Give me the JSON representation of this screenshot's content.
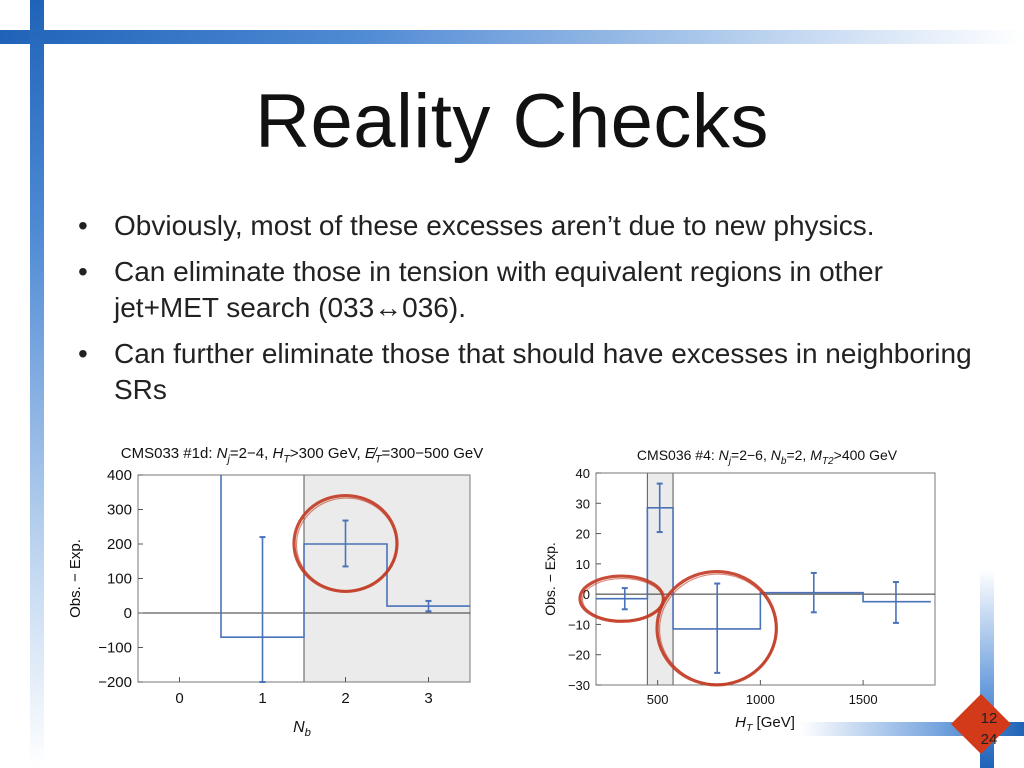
{
  "slide": {
    "title": "Reality Checks",
    "bullets": [
      "Obviously, most of these excesses aren’t due to new physics.",
      "Can eliminate those in tension with equivalent regions in other jet+MET search (033↔036).",
      "Can further eliminate those that should have excesses in neighboring SRs"
    ],
    "bullet_glyph": "•",
    "page_number": "12",
    "page_total": "24",
    "colors": {
      "accent_blue": "#1f63b8",
      "series": "#4a72b8",
      "annotation_red": "#c23a22",
      "shade": "#ebebeb",
      "badge": "#d33a1a"
    }
  },
  "chart_data": [
    {
      "type": "bar",
      "title": "CMS033 #1d: N_j=2−4, H_T>300 GeV, E̸_T=300−500 GeV",
      "title_parts": [
        "CMS033 #1d: ",
        "N",
        "j",
        "=2−4, ",
        "H",
        "T",
        ">300 GeV, ",
        "E̸",
        "T",
        "=300−500 GeV"
      ],
      "xlabel": "N",
      "xlabel_sub": "b",
      "ylabel": "Obs. − Exp.",
      "xlim": [
        -0.5,
        3.5
      ],
      "ylim": [
        -200,
        400
      ],
      "x_ticks": [
        0,
        1,
        2,
        3
      ],
      "y_ticks": [
        -200,
        -100,
        0,
        100,
        200,
        300,
        400
      ],
      "y_tick_labels": [
        "−200",
        "−100",
        "0",
        "100",
        "200",
        "300",
        "400"
      ],
      "bins": [
        {
          "lo": 0.5,
          "hi": 1.5,
          "value": -70,
          "err_lo": -200,
          "err_hi": 220,
          "center": 1
        },
        {
          "lo": 1.5,
          "hi": 2.5,
          "value": 200,
          "err_lo": 135,
          "err_hi": 268,
          "center": 2
        },
        {
          "lo": 2.5,
          "hi": 3.5,
          "value": 20,
          "err_lo": 5,
          "err_hi": 35,
          "center": 3
        }
      ],
      "left_edge_top": 400,
      "shaded_region": [
        1.5,
        3.5
      ],
      "highlight_bins": [
        1
      ]
    },
    {
      "type": "bar",
      "title": "CMS036 #4: N_j=2−6, N_b=2, M_T2>400 GeV",
      "title_parts": [
        "CMS036 #4: ",
        "N",
        "j",
        "=2−6, ",
        "N",
        "b",
        "=2, ",
        "M",
        "T2",
        ">400 GeV"
      ],
      "xlabel": "H",
      "xlabel_sub": "T",
      "xlabel_unit": " [GeV]",
      "ylabel": "Obs. − Exp.",
      "xlim": [
        200,
        1850
      ],
      "ylim": [
        -30,
        40
      ],
      "x_ticks": [
        500,
        1000,
        1500
      ],
      "y_ticks": [
        -30,
        -20,
        -10,
        0,
        10,
        20,
        30,
        40
      ],
      "y_tick_labels": [
        "−30",
        "−20",
        "−10",
        "0",
        "10",
        "20",
        "30",
        "40"
      ],
      "bins": [
        {
          "lo": 200,
          "hi": 450,
          "value": -1.5,
          "err_lo": -5,
          "err_hi": 2,
          "center": 340
        },
        {
          "lo": 450,
          "hi": 575,
          "value": 28.5,
          "err_lo": 20.5,
          "err_hi": 36.5,
          "center": 510
        },
        {
          "lo": 575,
          "hi": 1000,
          "value": -11.5,
          "err_lo": -26,
          "err_hi": 3.5,
          "center": 790
        },
        {
          "lo": 1000,
          "hi": 1500,
          "value": 0.5,
          "err_lo": -6,
          "err_hi": 7,
          "center": 1260
        },
        {
          "lo": 1500,
          "hi": 1830,
          "value": -2.5,
          "err_lo": -9.5,
          "err_hi": 4,
          "center": 1660
        }
      ],
      "shaded_region": [
        450,
        575
      ],
      "highlight_bins": [
        0,
        2
      ]
    }
  ]
}
